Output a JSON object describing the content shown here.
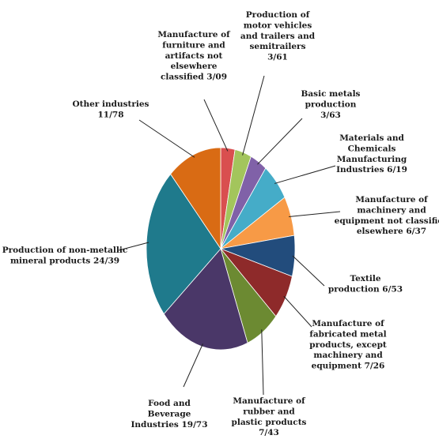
{
  "chart_data": {
    "type": "pie",
    "title": "",
    "slices": [
      {
        "label": "Manufacture of furniture and artifacts not elsewhere classified 3/09",
        "value": 3.09,
        "color": "#d94f4f"
      },
      {
        "label": "Production of motor vehicles and trailers and semitrailers 3/61",
        "value": 3.61,
        "color": "#a3c55c"
      },
      {
        "label": "Basic metals production 3/63",
        "value": 3.63,
        "color": "#8061a8"
      },
      {
        "label": "Materials and Chemicals Manufacturing Industries 6/19",
        "value": 6.19,
        "color": "#45acc8"
      },
      {
        "label": "Manufacture of machinery and equipment not classified elsewhere 6/37",
        "value": 6.37,
        "color": "#f79a46"
      },
      {
        "label": "Textile production 6/53",
        "value": 6.53,
        "color": "#224c7c"
      },
      {
        "label": "Manufacture of fabricated metal products, except machinery and equipment 7/26",
        "value": 7.26,
        "color": "#8e2a2a"
      },
      {
        "label": "Manufacture of rubber and plastic products 7/43",
        "value": 7.43,
        "color": "#6c8a32"
      },
      {
        "label": "Food and Beverage Industries 19/73",
        "value": 19.73,
        "color": "#4a3768"
      },
      {
        "label": "Production of non-metallic mineral products 24/39",
        "value": 24.39,
        "color": "#1f7a8c"
      },
      {
        "label": "Other industries 11/78",
        "value": 11.78,
        "color": "#d96b14"
      }
    ]
  },
  "labels": [
    {
      "lines": [
        "Manufacture of",
        "furniture and",
        "artifacts not",
        "elsewhere",
        "classified 3/09"
      ]
    },
    {
      "lines": [
        "Production of",
        "motor vehicles",
        "and trailers and",
        "semitrailers",
        "3/61"
      ]
    },
    {
      "lines": [
        "Basic metals",
        "production",
        "3/63"
      ]
    },
    {
      "lines": [
        "Materials and",
        "Chemicals",
        "Manufacturing",
        "Industries 6/19"
      ]
    },
    {
      "lines": [
        "Manufacture of",
        "machinery and",
        "equipment not classified",
        "elsewhere 6/37"
      ]
    },
    {
      "lines": [
        "Textile",
        "production 6/53"
      ]
    },
    {
      "lines": [
        "Manufacture of",
        "fabricated metal",
        "products, except",
        "machinery and",
        "equipment 7/26"
      ]
    },
    {
      "lines": [
        "Manufacture of",
        "rubber and",
        "plastic products",
        "7/43"
      ]
    },
    {
      "lines": [
        "Food and",
        "Beverage",
        "Industries 19/73"
      ]
    },
    {
      "lines": [
        "Production of non-metallic",
        "mineral products    24/39"
      ]
    },
    {
      "lines": [
        "Other industries",
        "11/78"
      ]
    }
  ]
}
